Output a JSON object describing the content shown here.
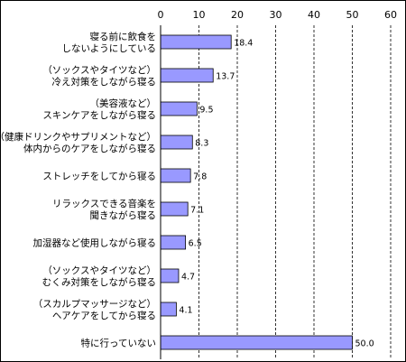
{
  "chart_data": {
    "type": "bar",
    "orientation": "horizontal",
    "categories": [
      [
        "寝る前に飲食を",
        "しないようにしている"
      ],
      [
        "（ソックスやタイツなど）",
        "冷え対策をしながら寝る"
      ],
      [
        "（美容液など）",
        "スキンケアをしながら寝る"
      ],
      [
        "（健康ドリンクやサプリメントなど）",
        "体内からのケアをしながら寝る"
      ],
      [
        "ストレッチをしてから寝る"
      ],
      [
        "リラックスできる音楽を",
        "聞きながら寝る"
      ],
      [
        "加湿器など使用しながら寝る"
      ],
      [
        "（ソックスやタイツなど）",
        "むくみ対策をしながら寝る"
      ],
      [
        "（スカルプマッサージなど）",
        "ヘアケアをしてから寝る"
      ],
      [
        "特に行っていない"
      ]
    ],
    "values": [
      18.4,
      13.7,
      9.5,
      8.3,
      7.8,
      7.1,
      6.5,
      4.7,
      4.1,
      50.0
    ],
    "value_labels": [
      "18.4",
      "13.7",
      "9.5",
      "8.3",
      "7.8",
      "7.1",
      "6.5",
      "4.7",
      "4.1",
      "50.0"
    ],
    "xlim": [
      0,
      60
    ],
    "xticks": [
      0,
      10,
      20,
      30,
      40,
      50,
      60
    ],
    "xtick_labels": [
      "0",
      "10",
      "20",
      "30",
      "40",
      "50",
      "60"
    ],
    "grid": "vertical-dashed",
    "axis_position": "top",
    "colors": {
      "bar_fill": "#9999ff",
      "bar_stroke": "#000000",
      "grid": "#000000"
    },
    "title": "",
    "xlabel": "",
    "ylabel": ""
  }
}
